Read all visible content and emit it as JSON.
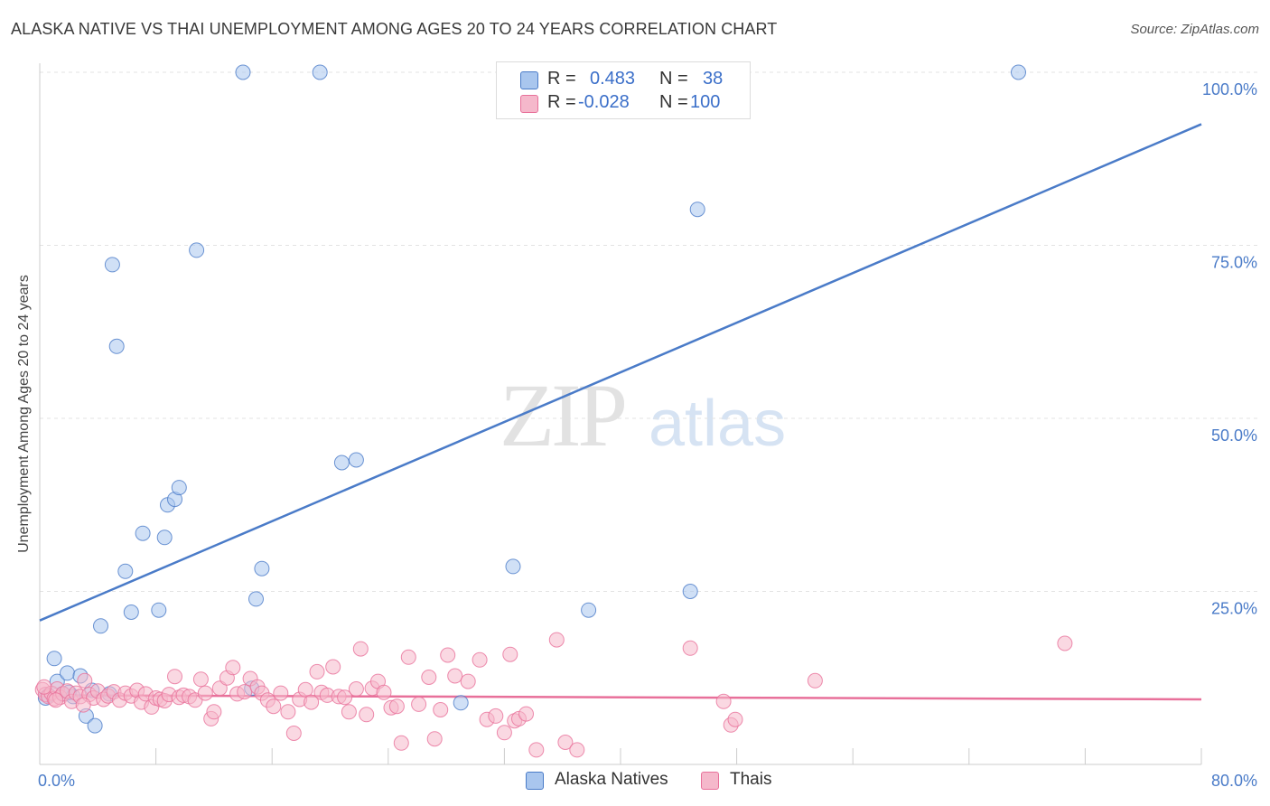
{
  "header": {
    "title": "ALASKA NATIVE VS THAI UNEMPLOYMENT AMONG AGES 20 TO 24 YEARS CORRELATION CHART",
    "source": "Source: ZipAtlas.com"
  },
  "watermark": {
    "zip": "ZIP",
    "atlas": "atlas"
  },
  "legend": {
    "rows": [
      {
        "r_label": "R =",
        "r_value": "0.483",
        "n_label": "N =",
        "n_value": "38",
        "color": "#a9c6ee"
      },
      {
        "r_label": "R =",
        "r_value": "-0.028",
        "n_label": "N =",
        "n_value": "100",
        "color": "#f5b8cb"
      }
    ],
    "bottom": [
      {
        "label": "Alaska Natives",
        "color": "#a9c6ee"
      },
      {
        "label": "Thais",
        "color": "#f5b8cb"
      }
    ]
  },
  "chart_data": {
    "type": "scatter",
    "title": "ALASKA NATIVE VS THAI UNEMPLOYMENT AMONG AGES 20 TO 24 YEARS CORRELATION CHART",
    "xlabel": "",
    "ylabel": "Unemployment Among Ages 20 to 24 years",
    "xlim": [
      0,
      80
    ],
    "ylim": [
      0,
      103
    ],
    "x_tick_labels": [
      "0.0%",
      "80.0%"
    ],
    "y_ticks": [
      25,
      50,
      75,
      100
    ],
    "y_tick_labels": [
      "25.0%",
      "50.0%",
      "75.0%",
      "100.0%"
    ],
    "grid": true,
    "series": [
      {
        "name": "Alaska Natives",
        "color": "#4a7bc8",
        "fill": "#a9c6ee",
        "trend": {
          "x0": 0,
          "y0": 20.8,
          "x1": 80,
          "y1": 92.5
        },
        "points": [
          [
            0.6,
            10
          ],
          [
            1.0,
            15.3
          ],
          [
            1.2,
            12
          ],
          [
            1.6,
            10.2
          ],
          [
            1.9,
            13.2
          ],
          [
            2.3,
            9.8
          ],
          [
            2.8,
            12.8
          ],
          [
            3.2,
            7
          ],
          [
            3.6,
            10.7
          ],
          [
            3.8,
            5.6
          ],
          [
            4.2,
            20
          ],
          [
            4.8,
            10.2
          ],
          [
            5.0,
            72.2
          ],
          [
            5.3,
            60.4
          ],
          [
            5.9,
            27.9
          ],
          [
            6.3,
            22
          ],
          [
            7.1,
            33.4
          ],
          [
            8.2,
            22.3
          ],
          [
            8.6,
            32.8
          ],
          [
            8.8,
            37.5
          ],
          [
            9.3,
            38.3
          ],
          [
            9.6,
            40
          ],
          [
            10.8,
            74.3
          ],
          [
            14.0,
            100
          ],
          [
            14.6,
            11
          ],
          [
            14.9,
            23.9
          ],
          [
            15.3,
            28.3
          ],
          [
            19.3,
            100
          ],
          [
            20.8,
            43.6
          ],
          [
            21.8,
            44
          ],
          [
            29.0,
            8.9
          ],
          [
            32.6,
            28.6
          ],
          [
            37.8,
            22.3
          ],
          [
            44.8,
            25
          ],
          [
            45.3,
            80.2
          ],
          [
            67.4,
            100
          ],
          [
            0.4,
            9.6
          ],
          [
            2.0,
            10.4
          ]
        ]
      },
      {
        "name": "Thais",
        "color": "#e8709a",
        "fill": "#f5b8cb",
        "trend": {
          "x0": 0,
          "y0": 10,
          "x1": 80,
          "y1": 9.4
        },
        "points": [
          [
            0.2,
            10.8
          ],
          [
            0.4,
            10.1
          ],
          [
            0.6,
            9.8
          ],
          [
            0.8,
            10.3
          ],
          [
            1.0,
            9.5
          ],
          [
            1.2,
            10.9
          ],
          [
            1.4,
            9.7
          ],
          [
            1.6,
            10.2
          ],
          [
            1.9,
            10.6
          ],
          [
            2.2,
            9.1
          ],
          [
            2.5,
            10.3
          ],
          [
            2.8,
            9.8
          ],
          [
            3.1,
            12.1
          ],
          [
            3.4,
            10.1
          ],
          [
            3.7,
            9.6
          ],
          [
            4.0,
            10.6
          ],
          [
            4.4,
            9.4
          ],
          [
            4.7,
            9.9
          ],
          [
            5.1,
            10.5
          ],
          [
            5.5,
            9.3
          ],
          [
            5.9,
            10.3
          ],
          [
            6.3,
            9.9
          ],
          [
            6.7,
            10.7
          ],
          [
            7.0,
            9
          ],
          [
            7.3,
            10.2
          ],
          [
            7.7,
            8.3
          ],
          [
            8.0,
            9.6
          ],
          [
            8.3,
            9.4
          ],
          [
            8.6,
            9.2
          ],
          [
            8.9,
            10.1
          ],
          [
            9.3,
            12.7
          ],
          [
            9.6,
            9.7
          ],
          [
            9.9,
            10
          ],
          [
            10.3,
            9.8
          ],
          [
            10.7,
            9.3
          ],
          [
            11.1,
            12.3
          ],
          [
            11.4,
            10.3
          ],
          [
            11.8,
            6.6
          ],
          [
            12.0,
            7.6
          ],
          [
            12.4,
            11
          ],
          [
            12.9,
            12.5
          ],
          [
            13.3,
            14
          ],
          [
            13.6,
            10.2
          ],
          [
            14.1,
            10.5
          ],
          [
            14.5,
            12.4
          ],
          [
            15.0,
            11.2
          ],
          [
            15.3,
            10.3
          ],
          [
            15.7,
            9.3
          ],
          [
            16.1,
            8.4
          ],
          [
            16.6,
            10.3
          ],
          [
            17.1,
            7.6
          ],
          [
            17.5,
            4.5
          ],
          [
            17.9,
            9.4
          ],
          [
            18.3,
            10.8
          ],
          [
            18.7,
            9
          ],
          [
            19.1,
            13.4
          ],
          [
            19.4,
            10.4
          ],
          [
            19.8,
            10
          ],
          [
            20.2,
            14.1
          ],
          [
            20.6,
            9.8
          ],
          [
            21.0,
            9.7
          ],
          [
            21.3,
            7.6
          ],
          [
            21.8,
            10.9
          ],
          [
            22.1,
            16.7
          ],
          [
            22.5,
            7.2
          ],
          [
            22.9,
            11
          ],
          [
            23.3,
            12
          ],
          [
            23.7,
            10.4
          ],
          [
            24.2,
            8.2
          ],
          [
            24.6,
            8.4
          ],
          [
            24.9,
            3.1
          ],
          [
            25.4,
            15.5
          ],
          [
            26.1,
            8.7
          ],
          [
            26.8,
            12.6
          ],
          [
            27.2,
            3.7
          ],
          [
            27.6,
            7.9
          ],
          [
            28.1,
            15.8
          ],
          [
            28.6,
            12.8
          ],
          [
            29.5,
            12
          ],
          [
            30.3,
            15.1
          ],
          [
            30.8,
            6.5
          ],
          [
            31.4,
            7
          ],
          [
            32.0,
            4.6
          ],
          [
            32.4,
            15.9
          ],
          [
            32.7,
            6.3
          ],
          [
            33.0,
            6.6
          ],
          [
            33.5,
            7.3
          ],
          [
            34.2,
            2.1
          ],
          [
            35.6,
            18
          ],
          [
            36.2,
            3.2
          ],
          [
            37.0,
            2.1
          ],
          [
            44.8,
            16.8
          ],
          [
            47.1,
            9.1
          ],
          [
            47.6,
            5.7
          ],
          [
            47.9,
            6.5
          ],
          [
            53.4,
            12.1
          ],
          [
            70.6,
            17.5
          ],
          [
            0.3,
            11.2
          ],
          [
            1.1,
            9.3
          ],
          [
            3.0,
            8.6
          ]
        ]
      }
    ]
  }
}
